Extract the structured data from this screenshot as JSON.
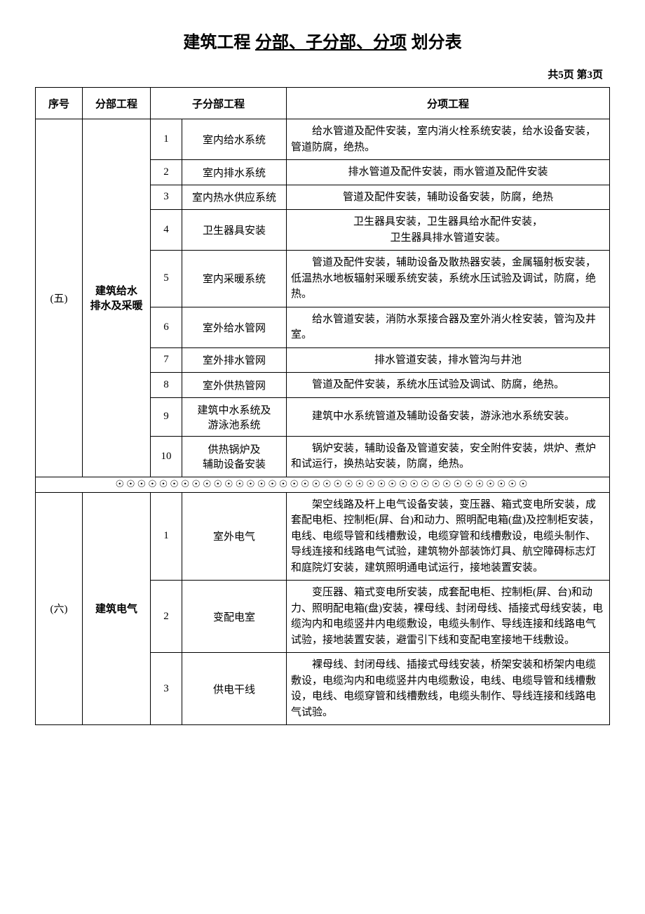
{
  "title_prefix": "建筑工程",
  "title_underline": "分部、子分部、分项",
  "title_suffix": "划分表",
  "page_info": "共5页 第3页",
  "headers": {
    "seq": "序号",
    "division": "分部工程",
    "subdivision": "子分部工程",
    "items": "分项工程"
  },
  "sections": [
    {
      "seq": "(五)",
      "division": "建筑给水\n排水及采暖",
      "rows": [
        {
          "num": "1",
          "name": "室内给水系统",
          "items": "给水管道及配件安装，室内消火栓系统安装，给水设备安装，管道防腐，绝热。",
          "align": "indent"
        },
        {
          "num": "2",
          "name": "室内排水系统",
          "items": "排水管道及配件安装，雨水管道及配件安装",
          "align": "center"
        },
        {
          "num": "3",
          "name": "室内热水供应系统",
          "items": "管道及配件安装，辅助设备安装，防腐，绝热",
          "align": "center"
        },
        {
          "num": "4",
          "name": "卫生器具安装",
          "items": "卫生器具安装，卫生器具给水配件安装，\n卫生器具排水管道安装。",
          "align": "center"
        },
        {
          "num": "5",
          "name": "室内采暖系统",
          "items": "管道及配件安装，辅助设备及散热器安装，金属辐射板安装，低温热水地板辐射采暖系统安装，系统水压试验及调试，防腐，绝热。",
          "align": "indent"
        },
        {
          "num": "6",
          "name": "室外给水管网",
          "items": "给水管道安装，消防水泵接合器及室外消火栓安装，管沟及井室。",
          "align": "indent"
        },
        {
          "num": "7",
          "name": "室外排水管网",
          "items": "排水管道安装，排水管沟与井池",
          "align": "center"
        },
        {
          "num": "8",
          "name": "室外供热管网",
          "items": "管道及配件安装，系统水压试验及调试、防腐，绝热。",
          "align": "indent"
        },
        {
          "num": "9",
          "name": "建筑中水系统及\n游泳池系统",
          "items": "建筑中水系统管道及辅助设备安装，游泳池水系统安装。",
          "align": "indent"
        },
        {
          "num": "10",
          "name": "供热锅炉及\n辅助设备安装",
          "items": "锅炉安装，辅助设备及管道安装，安全附件安装，烘炉、煮炉和试运行，换热站安装，防腐，绝热。",
          "align": "indent"
        }
      ]
    },
    {
      "seq": "(六)",
      "division": "建筑电气",
      "rows": [
        {
          "num": "1",
          "name": "室外电气",
          "items": "架空线路及杆上电气设备安装，变压器、箱式变电所安装，成套配电柜、控制柜(屏、台)和动力、照明配电箱(盘)及控制柜安装，电线、电缆导管和线槽敷设，电缆穿管和线槽敷设，电缆头制作、导线连接和线路电气试验，建筑物外部装饰灯具、航空障碍标志灯和庭院灯安装，建筑照明通电试运行，接地装置安装。",
          "align": "indent"
        },
        {
          "num": "2",
          "name": "变配电室",
          "items": "变压器、箱式变电所安装，成套配电柜、控制柜(屏、台)和动力、照明配电箱(盘)安装，裸母线、封闭母线、插接式母线安装，电缆沟内和电缆竖井内电缆敷设，电缆头制作、导线连接和线路电气试验，接地装置安装，避雷引下线和变配电室接地干线敷设。",
          "align": "indent"
        },
        {
          "num": "3",
          "name": "供电干线",
          "items": "裸母线、封闭母线、插接式母线安装，桥架安装和桥架内电缆敷设，电缆沟内和电缆竖井内电缆敷设，电线、电缆导管和线槽敷设，电线、电缆穿管和线槽敷线，电缆头制作、导线连接和线路电气试验。",
          "align": "indent"
        }
      ]
    }
  ],
  "separator": "☉☉☉☉☉☉☉☉☉☉☉☉☉☉☉☉☉☉☉☉☉☉☉☉☉☉☉☉☉☉☉☉☉☉☉☉☉☉"
}
